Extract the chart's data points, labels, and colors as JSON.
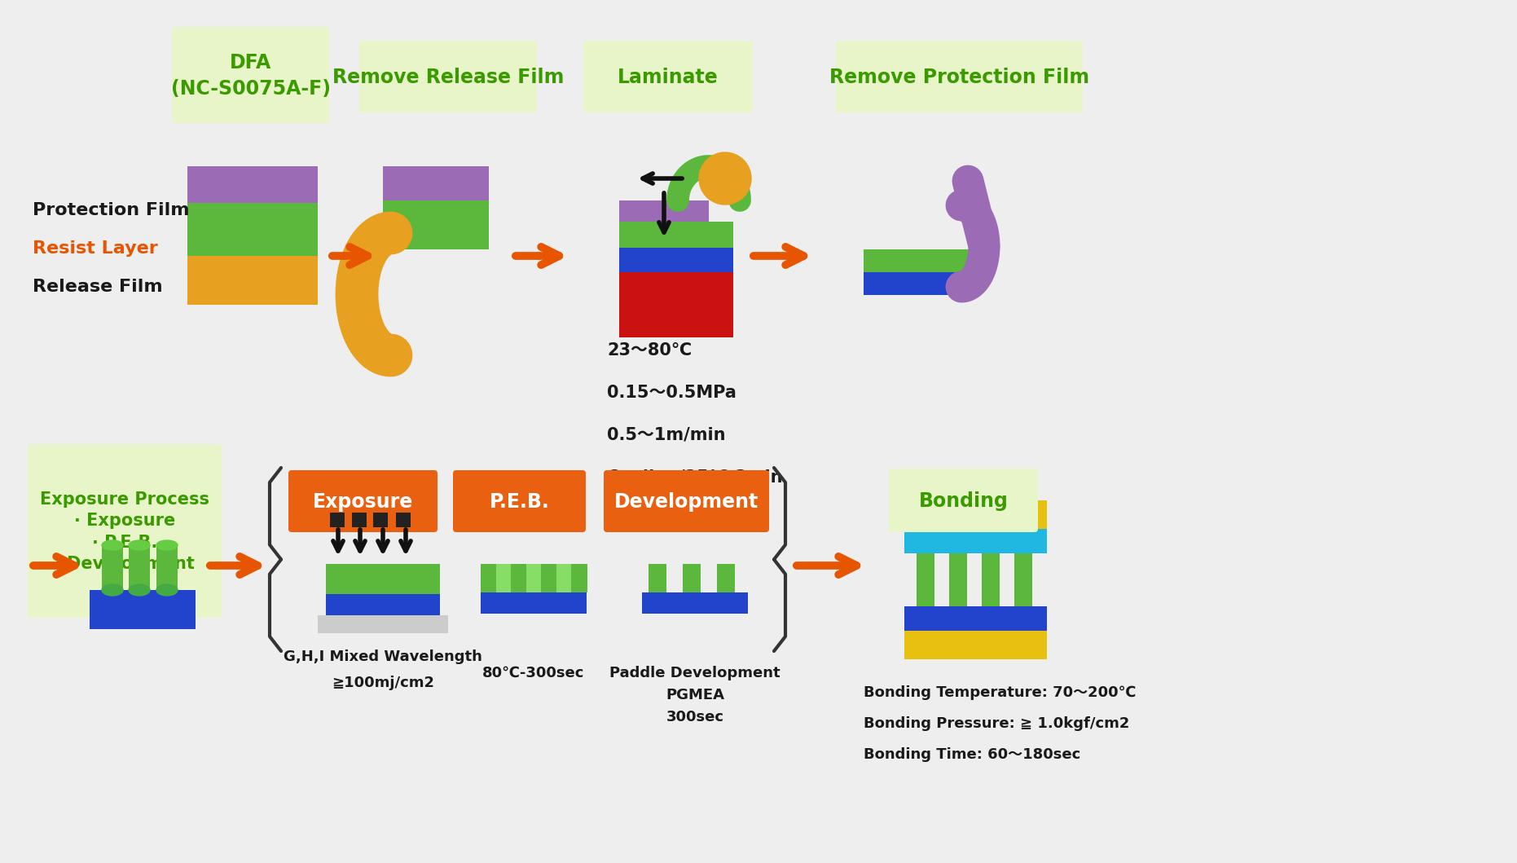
{
  "bg_color": "#eeeeee",
  "light_green_box": "#e8f5c8",
  "dark_green_text": "#3a9a00",
  "orange_arrow": "#e85500",
  "orange_box": "#e86010",
  "white_text": "#ffffff",
  "black_text": "#1a1a1a",
  "purple_color": "#9b6bb5",
  "green_layer": "#5cb83c",
  "orange_layer": "#e8a020",
  "blue_layer": "#2244cc",
  "red_color": "#cc1111",
  "gold_color": "#e8c010",
  "cyan_layer": "#20b8e0",
  "gray_stage": "#cccccc",
  "laminate_params": [
    "23～80℃",
    "0.15～0.5MPa",
    "0.5～1m/min",
    "Cooling/25℃ 3min"
  ],
  "exposure_params": [
    "G,H,I Mixed Wavelength",
    "≭100mj/cm2"
  ],
  "peb_params": [
    "80℃-300sec"
  ],
  "dev_params": [
    "Paddle Development",
    "PGMEA",
    "300sec"
  ],
  "bonding_params": [
    "Bonding Temperature: 70～200℃",
    "Bonding Pressure: ≧ 1.0kgf/cm2",
    "Bonding Time: 60～180sec"
  ]
}
